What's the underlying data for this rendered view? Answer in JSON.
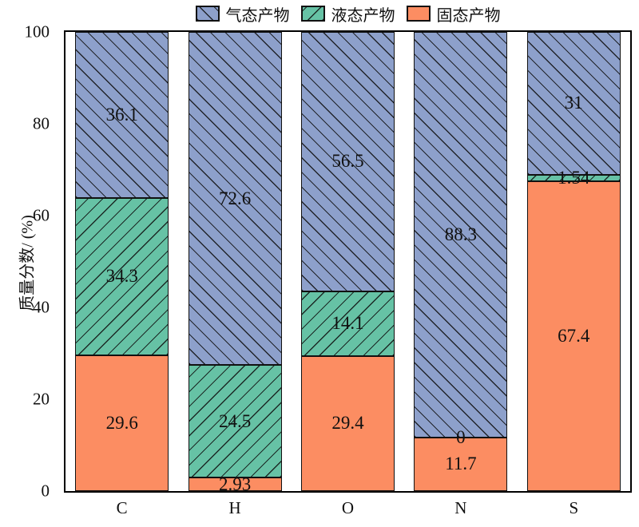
{
  "chart_data": {
    "type": "bar",
    "stacked": true,
    "title": "",
    "categories": [
      "C",
      "H",
      "O",
      "N",
      "S"
    ],
    "series": [
      {
        "name": "气态产物",
        "color": "#8da0cb",
        "hatch": "backslash",
        "values": [
          36.1,
          72.6,
          56.5,
          88.3,
          31
        ],
        "labels": [
          "36.1",
          "72.6",
          "56.5",
          "88.3",
          "31"
        ]
      },
      {
        "name": "液态产物",
        "color": "#66c2a5",
        "hatch": "slash",
        "values": [
          34.3,
          24.5,
          14.1,
          0,
          1.54
        ],
        "labels": [
          "34.3",
          "24.5",
          "14.1",
          "0",
          "1.54"
        ]
      },
      {
        "name": "固态产物",
        "color": "#fc8d62",
        "hatch": "none",
        "values": [
          29.6,
          2.93,
          29.4,
          11.7,
          67.4
        ],
        "labels": [
          "29.6",
          "2.93",
          "29.4",
          "11.7",
          "67.4"
        ]
      }
    ],
    "stack_bottom_to_top": [
      "固态产物",
      "液态产物",
      "气态产物"
    ],
    "xlabel": "",
    "ylabel": "质量分数/ (%)",
    "ylim": [
      0,
      100
    ],
    "yticks": [
      0,
      20,
      40,
      60,
      80,
      100
    ],
    "legend_position": "top-center",
    "grid": false,
    "bar_edge_color": "#111111",
    "value_label_color": "#111111"
  }
}
